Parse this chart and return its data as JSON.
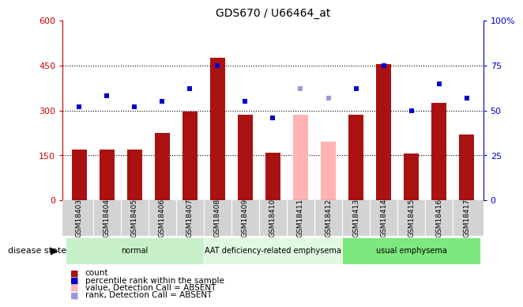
{
  "title": "GDS670 / U66464_at",
  "samples": [
    "GSM18403",
    "GSM18404",
    "GSM18405",
    "GSM18406",
    "GSM18407",
    "GSM18408",
    "GSM18409",
    "GSM18410",
    "GSM18411",
    "GSM18412",
    "GSM18413",
    "GSM18414",
    "GSM18415",
    "GSM18416",
    "GSM18417"
  ],
  "counts": [
    170,
    170,
    170,
    225,
    295,
    475,
    285,
    160,
    285,
    195,
    285,
    455,
    155,
    325,
    220
  ],
  "absent_bar_indices": [
    8,
    9
  ],
  "percentile_ranks": [
    52,
    58,
    52,
    55,
    62,
    75,
    55,
    46,
    62,
    57,
    62,
    75,
    50,
    65,
    57
  ],
  "absent_rank_indices": [
    8,
    9
  ],
  "bar_color_normal": "#aa1111",
  "bar_color_absent": "#ffb3b3",
  "dot_color_normal": "#0000cc",
  "dot_color_absent": "#9999dd",
  "ylim_left": [
    0,
    600
  ],
  "ylim_right": [
    0,
    100
  ],
  "yticks_left": [
    0,
    150,
    300,
    450,
    600
  ],
  "ytick_labels_left": [
    "0",
    "150",
    "300",
    "450",
    "600"
  ],
  "yticks_right": [
    0,
    25,
    50,
    75,
    100
  ],
  "ytick_labels_right": [
    "0",
    "25",
    "50",
    "75",
    "100%"
  ],
  "group_labels": [
    "normal",
    "AAT deficiency-related emphysema",
    "usual emphysema"
  ],
  "group_ranges": [
    [
      0,
      4
    ],
    [
      5,
      9
    ],
    [
      10,
      14
    ]
  ],
  "group_colors_light": [
    "#ccffcc",
    "#ddffdd",
    "#88ee88"
  ],
  "disease_state_label": "disease state",
  "legend_items": [
    {
      "label": "count",
      "color": "#aa1111"
    },
    {
      "label": "percentile rank within the sample",
      "color": "#0000cc"
    },
    {
      "label": "value, Detection Call = ABSENT",
      "color": "#ffb3b3"
    },
    {
      "label": "rank, Detection Call = ABSENT",
      "color": "#9999dd"
    }
  ],
  "gridline_values": [
    150,
    300,
    450
  ],
  "bar_width": 0.55,
  "dot_size": 5
}
